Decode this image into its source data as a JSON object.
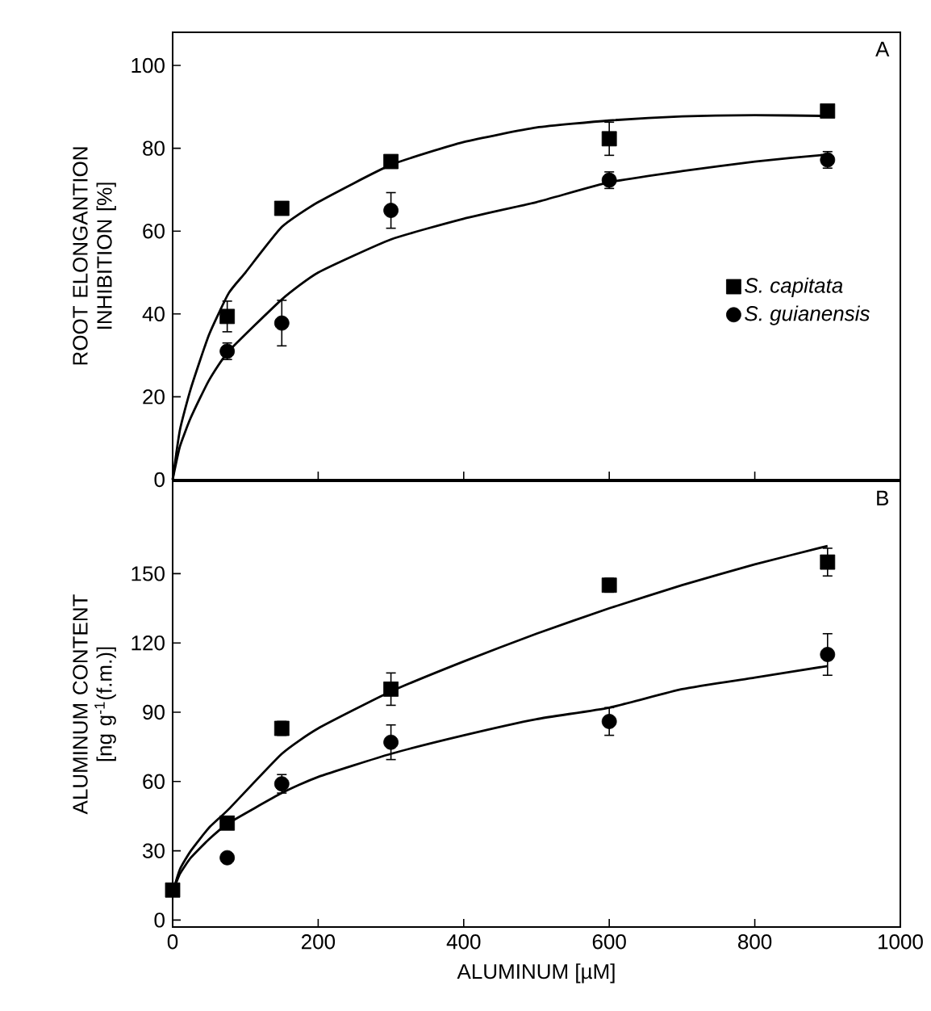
{
  "chart_data": [
    {
      "type": "scatter",
      "ylabel": "ROOT ELONGANTION INHIBITION [%]",
      "annotations": [
        "A"
      ],
      "xlim": [
        0,
        1000
      ],
      "xticks": [
        0,
        200,
        400,
        600,
        800,
        1000
      ],
      "ylim": [
        0,
        108
      ],
      "yticks": [
        0,
        20,
        40,
        60,
        80,
        100
      ],
      "tick_labels": "y",
      "legend": "right",
      "grid": false,
      "series": [
        {
          "name": "S. capitata",
          "color": "#000000",
          "marker": "square",
          "x": [
            75,
            150,
            300,
            600,
            900
          ],
          "values": [
            39.4,
            65.5,
            76.8,
            82.3,
            89
          ],
          "errors": [
            3.7,
            1.5,
            1.5,
            4,
            1.5
          ]
        },
        {
          "name": "S. guianensis",
          "color": "#000000",
          "marker": "circle",
          "x": [
            75,
            150,
            300,
            600,
            900
          ],
          "values": [
            31,
            37.8,
            65,
            72.3,
            77.2
          ],
          "errors": [
            2,
            5.5,
            4.3,
            2,
            2
          ]
        },
        {
          "type": "line",
          "color": "#000000",
          "x": [
            0,
            10,
            25,
            50,
            77,
            100,
            150,
            200,
            300,
            400,
            500,
            600,
            700,
            800,
            900
          ],
          "values": [
            0,
            12,
            22,
            35,
            45,
            50,
            61,
            67,
            76,
            81.5,
            85,
            86.7,
            87.7,
            88,
            87.8
          ]
        },
        {
          "type": "line",
          "color": "#000000",
          "x": [
            0,
            10,
            25,
            50,
            77,
            150,
            200,
            300,
            400,
            500,
            600,
            700,
            800,
            900
          ],
          "values": [
            0,
            8,
            15,
            24,
            31,
            43.5,
            50,
            58,
            63,
            67,
            71.8,
            74.5,
            76.8,
            78.5
          ]
        }
      ]
    },
    {
      "type": "scatter",
      "xlabel": "ALUMINUM  [µM]",
      "ylabel": "ALUMINUM CONTENT [ng g$^{-1}$(f.m.)]",
      "annotations": [
        "B"
      ],
      "xlim": [
        0,
        1000
      ],
      "xticks": [
        0,
        200,
        400,
        600,
        800,
        1000
      ],
      "ylim": [
        -3,
        190
      ],
      "yticks": [
        0,
        30,
        60,
        90,
        120,
        150
      ],
      "grid": false,
      "series": [
        {
          "color": "#000000",
          "marker": "square",
          "x": [
            0,
            75,
            150,
            300,
            600,
            900
          ],
          "values": [
            13,
            42,
            83,
            100,
            145,
            155
          ],
          "errors": [
            2,
            2,
            3,
            7,
            3,
            6
          ]
        },
        {
          "color": "#000000",
          "marker": "circle",
          "x": [
            75,
            150,
            300,
            600,
            900
          ],
          "values": [
            27,
            59,
            77,
            86,
            115
          ],
          "errors": [
            2,
            4,
            7.5,
            6,
            9
          ]
        },
        {
          "type": "line",
          "color": "#000000",
          "x": [
            0,
            10,
            25,
            50,
            77,
            150,
            200,
            300,
            400,
            500,
            600,
            700,
            800,
            900
          ],
          "values": [
            12,
            22,
            30,
            40,
            48,
            72,
            83,
            99,
            112,
            124,
            135,
            145,
            154,
            162
          ]
        },
        {
          "type": "line",
          "color": "#000000",
          "x": [
            0,
            10,
            25,
            50,
            77,
            150,
            200,
            300,
            400,
            500,
            600,
            700,
            800,
            900
          ],
          "values": [
            12,
            20,
            27,
            35,
            42,
            55,
            62,
            72,
            80,
            87,
            92,
            100,
            105,
            110
          ]
        }
      ]
    }
  ]
}
